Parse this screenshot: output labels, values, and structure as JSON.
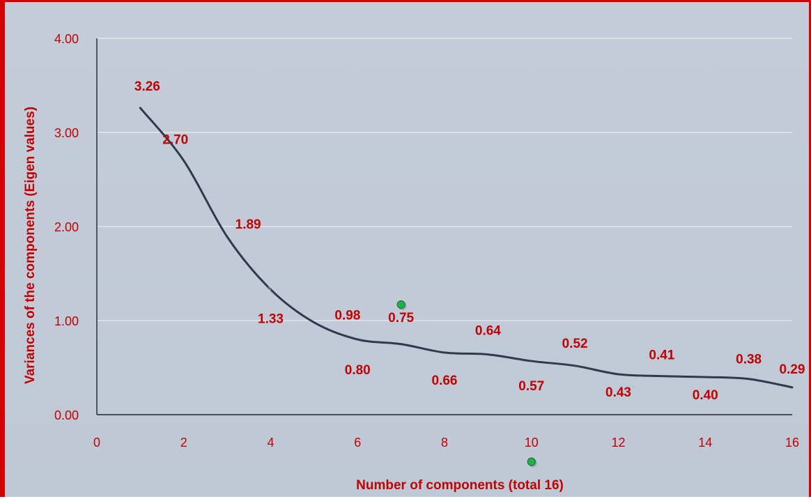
{
  "chart_data": {
    "type": "line",
    "title": "",
    "xlabel": "Number of components (total 16)",
    "ylabel": "Variances of the components (Eigen values)",
    "xlim": [
      0,
      16
    ],
    "ylim": [
      0,
      4
    ],
    "x_ticks": [
      0,
      2,
      4,
      6,
      8,
      10,
      12,
      14,
      16
    ],
    "x_tick_labels": [
      "0",
      "2",
      "4",
      "6",
      "8",
      "10",
      "12",
      "14",
      "16"
    ],
    "y_ticks": [
      0,
      1,
      2,
      3,
      4
    ],
    "y_tick_labels": [
      "0.00",
      "1.00",
      "2.00",
      "3.00",
      "4.00"
    ],
    "grid": "horizontal",
    "smoothed": true,
    "series": [
      {
        "x": [
          1,
          2,
          3,
          4,
          5,
          6,
          7,
          8,
          9,
          10,
          11,
          12,
          13,
          14,
          15,
          16
        ],
        "values": [
          3.26,
          2.7,
          1.89,
          1.33,
          0.98,
          0.8,
          0.75,
          0.66,
          0.64,
          0.57,
          0.52,
          0.43,
          0.41,
          0.4,
          0.38,
          0.29
        ],
        "labels": [
          "3.26",
          "2.70",
          "1.89",
          "1.33",
          "0.98",
          "0.80",
          "0.75",
          "0.66",
          "0.64",
          "0.57",
          "0.52",
          "0.43",
          "0.41",
          "0.40",
          "0.38",
          "0.29"
        ]
      }
    ],
    "markers": [
      {
        "x": 7,
        "y": 1.17
      },
      {
        "x": 10,
        "y": -0.5
      }
    ],
    "colors": {
      "line": "#2f3a4d",
      "text": "#c00000",
      "grid": "#e6eaf0",
      "marker": "#1fb24a",
      "border": "#d40000"
    }
  }
}
